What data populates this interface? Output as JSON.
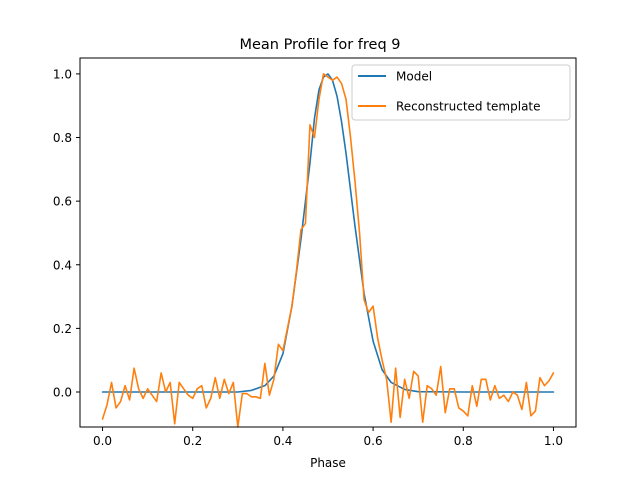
{
  "chart_data": {
    "type": "line",
    "title": "Mean Profile for freq 9",
    "xlabel": "Phase",
    "ylabel": "",
    "xlim": [
      -0.05,
      1.05
    ],
    "ylim": [
      -0.11,
      1.05
    ],
    "xticks": [
      0.0,
      0.2,
      0.4,
      0.6,
      0.8,
      1.0
    ],
    "xtick_labels": [
      "0.0",
      "0.2",
      "0.4",
      "0.6",
      "0.8",
      "1.0"
    ],
    "yticks": [
      0.0,
      0.2,
      0.4,
      0.6,
      0.8,
      1.0
    ],
    "ytick_labels": [
      "0.0",
      "0.2",
      "0.4",
      "0.6",
      "0.8",
      "1.0"
    ],
    "legend_position": "top-right",
    "grid": false,
    "series": [
      {
        "name": "Model",
        "color": "#1f77b4",
        "x": [
          0.0,
          0.1,
          0.2,
          0.3,
          0.33,
          0.36,
          0.38,
          0.4,
          0.42,
          0.44,
          0.46,
          0.47,
          0.48,
          0.49,
          0.5,
          0.51,
          0.52,
          0.53,
          0.54,
          0.56,
          0.58,
          0.6,
          0.62,
          0.64,
          0.67,
          0.7,
          0.8,
          0.9,
          1.0
        ],
        "y": [
          0.0,
          0.0,
          0.0,
          0.0,
          0.005,
          0.02,
          0.05,
          0.12,
          0.27,
          0.48,
          0.72,
          0.86,
          0.95,
          0.99,
          1.0,
          0.98,
          0.93,
          0.85,
          0.75,
          0.52,
          0.31,
          0.16,
          0.07,
          0.03,
          0.008,
          0.001,
          0.0,
          0.0,
          0.0
        ]
      },
      {
        "name": "Reconstructed template",
        "color": "#ff7f0e",
        "x": [
          0.0,
          0.01,
          0.02,
          0.03,
          0.04,
          0.05,
          0.06,
          0.07,
          0.08,
          0.09,
          0.1,
          0.11,
          0.12,
          0.13,
          0.14,
          0.15,
          0.16,
          0.17,
          0.18,
          0.19,
          0.2,
          0.21,
          0.22,
          0.23,
          0.24,
          0.25,
          0.26,
          0.27,
          0.28,
          0.29,
          0.3,
          0.31,
          0.32,
          0.33,
          0.34,
          0.35,
          0.36,
          0.37,
          0.38,
          0.39,
          0.4,
          0.41,
          0.42,
          0.43,
          0.44,
          0.45,
          0.46,
          0.47,
          0.48,
          0.49,
          0.5,
          0.51,
          0.52,
          0.53,
          0.54,
          0.55,
          0.56,
          0.57,
          0.58,
          0.59,
          0.6,
          0.61,
          0.62,
          0.63,
          0.64,
          0.65,
          0.66,
          0.67,
          0.68,
          0.69,
          0.7,
          0.71,
          0.72,
          0.73,
          0.74,
          0.75,
          0.76,
          0.77,
          0.78,
          0.79,
          0.8,
          0.81,
          0.82,
          0.83,
          0.84,
          0.85,
          0.86,
          0.87,
          0.88,
          0.89,
          0.9,
          0.91,
          0.92,
          0.93,
          0.94,
          0.95,
          0.96,
          0.97,
          0.98,
          0.99,
          1.0
        ],
        "y": [
          -0.085,
          -0.04,
          0.03,
          -0.05,
          -0.03,
          0.02,
          -0.025,
          0.075,
          0.01,
          -0.02,
          0.01,
          -0.01,
          -0.03,
          0.06,
          0.0,
          0.03,
          -0.1,
          0.03,
          0.01,
          -0.01,
          -0.02,
          0.01,
          0.02,
          -0.05,
          -0.02,
          0.045,
          -0.02,
          0.04,
          -0.005,
          0.03,
          -0.11,
          -0.005,
          -0.005,
          -0.015,
          -0.015,
          -0.02,
          0.09,
          -0.01,
          0.04,
          0.15,
          0.13,
          0.2,
          0.27,
          0.38,
          0.51,
          0.53,
          0.84,
          0.8,
          0.92,
          1.0,
          0.99,
          0.98,
          0.99,
          0.97,
          0.92,
          0.8,
          0.66,
          0.5,
          0.29,
          0.25,
          0.27,
          0.17,
          0.1,
          0.04,
          -0.095,
          0.075,
          -0.08,
          0.04,
          -0.02,
          0.065,
          0.05,
          -0.095,
          0.02,
          0.01,
          -0.01,
          0.08,
          -0.065,
          0.01,
          0.01,
          -0.05,
          -0.06,
          -0.075,
          0.02,
          -0.045,
          0.04,
          0.04,
          -0.025,
          0.02,
          -0.02,
          -0.01,
          -0.03,
          0.0,
          -0.01,
          -0.055,
          0.03,
          -0.075,
          -0.06,
          0.045,
          0.02,
          0.035,
          0.06
        ]
      }
    ]
  }
}
